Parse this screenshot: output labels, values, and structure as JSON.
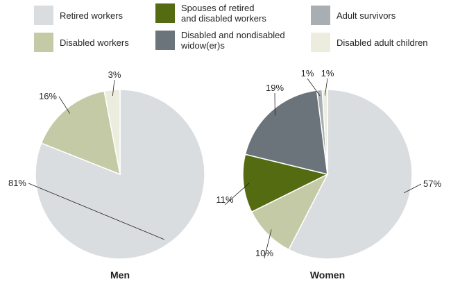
{
  "chart_data": {
    "type": "pie",
    "legend": [
      {
        "key": "retired",
        "label": [
          "Retired workers"
        ],
        "color": "#dadde0"
      },
      {
        "key": "spouses",
        "label": [
          "Spouses of retired",
          "and disabled workers"
        ],
        "color": "#556b12"
      },
      {
        "key": "adult_survivors",
        "label": [
          "Adult survivors"
        ],
        "color": "#a9aeb3"
      },
      {
        "key": "disabled",
        "label": [
          "Disabled workers"
        ],
        "color": "#c4caa6"
      },
      {
        "key": "widowers",
        "label": [
          "Disabled and nondisabled",
          "widow(er)s"
        ],
        "color": "#6b747b"
      },
      {
        "key": "dac",
        "label": [
          "Disabled adult children"
        ],
        "color": "#ecedde"
      }
    ],
    "pies": [
      {
        "title": "Men",
        "slices": [
          {
            "key": "retired",
            "value": 81,
            "label": "81%"
          },
          {
            "key": "disabled",
            "value": 16,
            "label": "16%"
          },
          {
            "key": "dac",
            "value": 3,
            "label": "3%"
          }
        ]
      },
      {
        "title": "Women",
        "slices": [
          {
            "key": "retired",
            "value": 57,
            "label": "57%"
          },
          {
            "key": "disabled",
            "value": 10,
            "label": "10%"
          },
          {
            "key": "spouses",
            "value": 11,
            "label": "11%"
          },
          {
            "key": "widowers",
            "value": 19,
            "label": "19%"
          },
          {
            "key": "adult_survivors",
            "value": 1,
            "label": "1%"
          },
          {
            "key": "dac",
            "value": 1,
            "label": "1%"
          }
        ]
      }
    ]
  }
}
